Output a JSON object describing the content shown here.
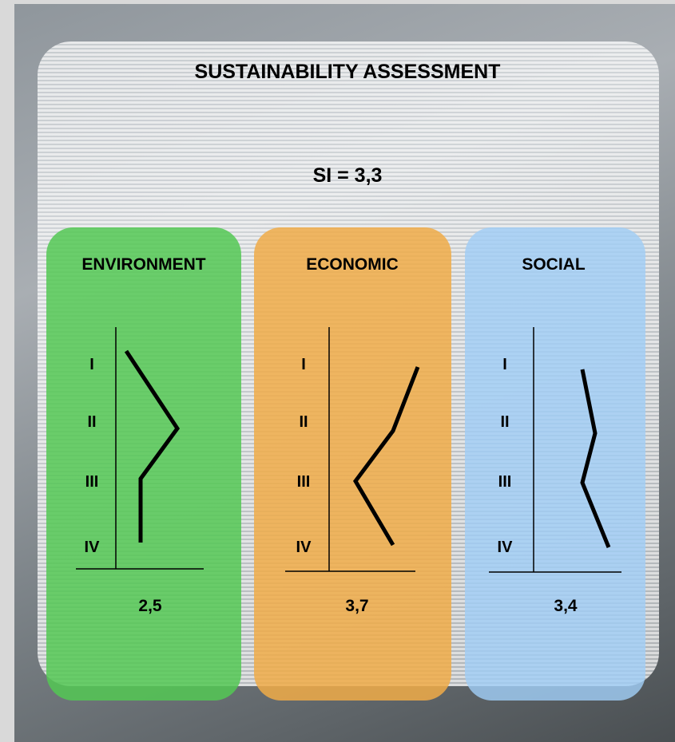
{
  "title": "SUSTAINABILITY ASSESSMENT",
  "index": "SI = 3,3",
  "pillars": [
    {
      "name": "ENVIRONMENT",
      "levels": [
        "I",
        "II",
        "III",
        "IV"
      ],
      "score": "2,5"
    },
    {
      "name": "ECONOMIC",
      "levels": [
        "I",
        "II",
        "III",
        "IV"
      ],
      "score": "3,7"
    },
    {
      "name": "SOCIAL",
      "levels": [
        "I",
        "II",
        "III",
        "IV"
      ],
      "score": "3,4"
    }
  ]
}
